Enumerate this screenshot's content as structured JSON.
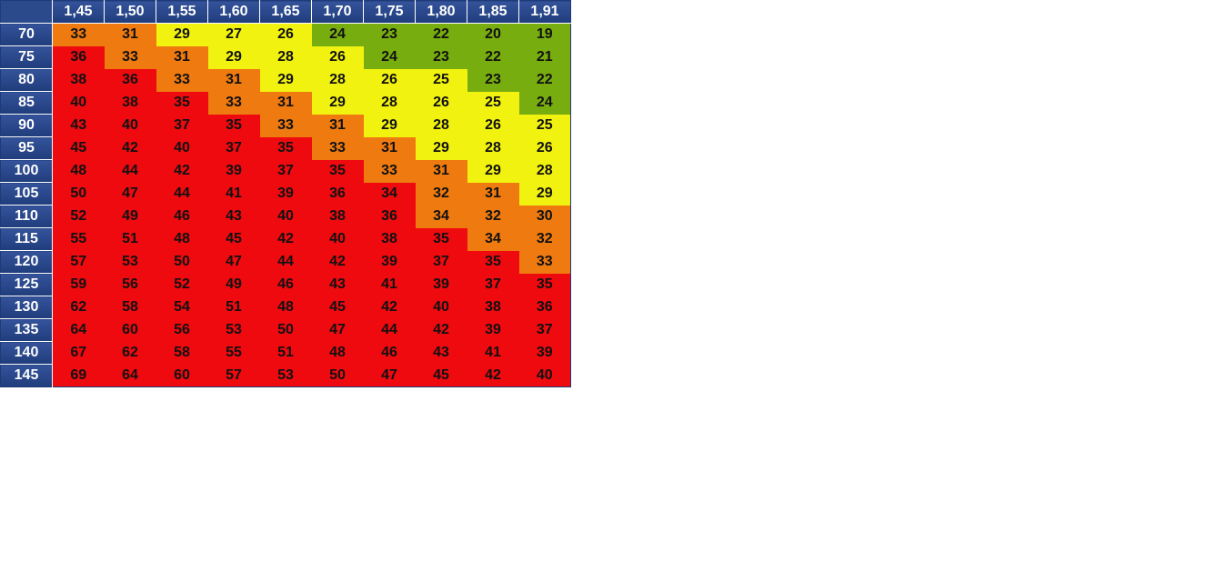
{
  "chart_data": {
    "type": "heatmap",
    "title": "",
    "xlabel": "",
    "ylabel": "",
    "columns": [
      "1,45",
      "1,50",
      "1,55",
      "1,60",
      "1,65",
      "1,70",
      "1,75",
      "1,80",
      "1,85",
      "1,91"
    ],
    "rows": [
      "70",
      "75",
      "80",
      "85",
      "90",
      "95",
      "100",
      "105",
      "110",
      "115",
      "120",
      "125",
      "130",
      "135",
      "140",
      "145"
    ],
    "values": [
      [
        33,
        31,
        29,
        27,
        26,
        24,
        23,
        22,
        20,
        19
      ],
      [
        36,
        33,
        31,
        29,
        28,
        26,
        24,
        23,
        22,
        21
      ],
      [
        38,
        36,
        33,
        31,
        29,
        28,
        26,
        25,
        23,
        22
      ],
      [
        40,
        38,
        35,
        33,
        31,
        29,
        28,
        26,
        25,
        24
      ],
      [
        43,
        40,
        37,
        35,
        33,
        31,
        29,
        28,
        26,
        25
      ],
      [
        45,
        42,
        40,
        37,
        35,
        33,
        31,
        29,
        28,
        26
      ],
      [
        48,
        44,
        42,
        39,
        37,
        35,
        33,
        31,
        29,
        28
      ],
      [
        50,
        47,
        44,
        41,
        39,
        36,
        34,
        32,
        31,
        29
      ],
      [
        52,
        49,
        46,
        43,
        40,
        38,
        36,
        34,
        32,
        30
      ],
      [
        55,
        51,
        48,
        45,
        42,
        40,
        38,
        35,
        34,
        32
      ],
      [
        57,
        53,
        50,
        47,
        44,
        42,
        39,
        37,
        35,
        33
      ],
      [
        59,
        56,
        52,
        49,
        46,
        43,
        41,
        39,
        37,
        35
      ],
      [
        62,
        58,
        54,
        51,
        48,
        45,
        42,
        40,
        38,
        36
      ],
      [
        64,
        60,
        56,
        53,
        50,
        47,
        44,
        42,
        39,
        37
      ],
      [
        67,
        62,
        58,
        55,
        51,
        48,
        46,
        43,
        41,
        39
      ],
      [
        69,
        64,
        60,
        57,
        53,
        50,
        47,
        45,
        42,
        40
      ]
    ],
    "levels": [
      [
        1,
        1,
        2,
        2,
        2,
        3,
        3,
        3,
        3,
        3
      ],
      [
        0,
        1,
        1,
        2,
        2,
        2,
        3,
        3,
        3,
        3
      ],
      [
        0,
        0,
        1,
        1,
        2,
        2,
        2,
        2,
        3,
        3
      ],
      [
        0,
        0,
        0,
        1,
        1,
        2,
        2,
        2,
        2,
        3
      ],
      [
        0,
        0,
        0,
        0,
        1,
        1,
        2,
        2,
        2,
        2
      ],
      [
        0,
        0,
        0,
        0,
        0,
        1,
        1,
        2,
        2,
        2
      ],
      [
        0,
        0,
        0,
        0,
        0,
        0,
        1,
        1,
        2,
        2
      ],
      [
        0,
        0,
        0,
        0,
        0,
        0,
        0,
        1,
        1,
        2
      ],
      [
        0,
        0,
        0,
        0,
        0,
        0,
        0,
        1,
        1,
        1
      ],
      [
        0,
        0,
        0,
        0,
        0,
        0,
        0,
        0,
        1,
        1
      ],
      [
        0,
        0,
        0,
        0,
        0,
        0,
        0,
        0,
        0,
        1
      ],
      [
        0,
        0,
        0,
        0,
        0,
        0,
        0,
        0,
        0,
        0
      ],
      [
        0,
        0,
        0,
        0,
        0,
        0,
        0,
        0,
        0,
        0
      ],
      [
        0,
        0,
        0,
        0,
        0,
        0,
        0,
        0,
        0,
        0
      ],
      [
        0,
        0,
        0,
        0,
        0,
        0,
        0,
        0,
        0,
        0
      ],
      [
        0,
        0,
        0,
        0,
        0,
        0,
        0,
        0,
        0,
        0
      ]
    ],
    "level_colors": [
      "#ee0a0f",
      "#ee7a10",
      "#f2f210",
      "#78ad10"
    ],
    "header_color": "#24418a",
    "grid": false
  }
}
